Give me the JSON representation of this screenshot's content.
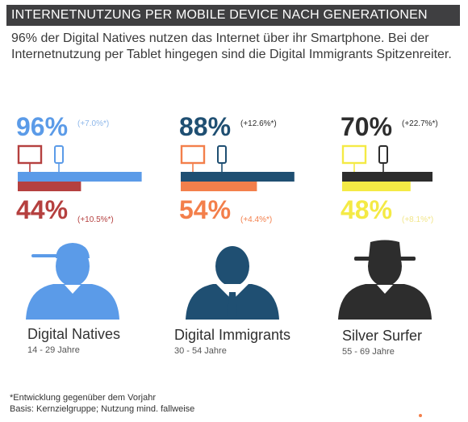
{
  "header": {
    "title": "INTERNETNUTZUNG PER MOBILE DEVICE NACH GENERATIONEN"
  },
  "intro": "96% der Digital Natives nutzen das Internet über ihr Smartphone. Bei der Internetnutzung per Tablet hingegen sind die Digital Immigrants Spitzenreiter.",
  "colors": {
    "natives_smartphone": "#5b9be8",
    "natives_tablet": "#b5403f",
    "immigrants_smartphone": "#1f4f72",
    "immigrants_tablet": "#f37f4b",
    "surfer_smartphone": "#2d2d2d",
    "surfer_tablet": "#f4ea45"
  },
  "chart_data": {
    "type": "bar",
    "categories": [
      "Digital Natives",
      "Digital Immigrants",
      "Silver Surfer"
    ],
    "age_ranges": [
      "14 - 29 Jahre",
      "30 - 54 Jahre",
      "55 - 69 Jahre"
    ],
    "series": [
      {
        "icon": "smartphone-icon",
        "values": [
          96,
          88,
          70
        ],
        "labels": [
          "96%",
          "88%",
          "70%"
        ],
        "changes": [
          "(+7.0%*)",
          "(+12.6%*)",
          "(+22.7%*)"
        ]
      },
      {
        "icon": "tablet-icon",
        "values": [
          44,
          54,
          48
        ],
        "labels": [
          "44%",
          "54%",
          "48%"
        ],
        "changes": [
          "(+10.5%*)",
          "(+4.4%*)",
          "(+8.1%*)"
        ]
      }
    ],
    "ylim": [
      0,
      100
    ]
  },
  "footnotes": {
    "line1": "*Entwicklung gegenüber dem Vorjahr",
    "line2": "Basis: Kernzielgruppe; Nutzung mind. fallweise"
  }
}
